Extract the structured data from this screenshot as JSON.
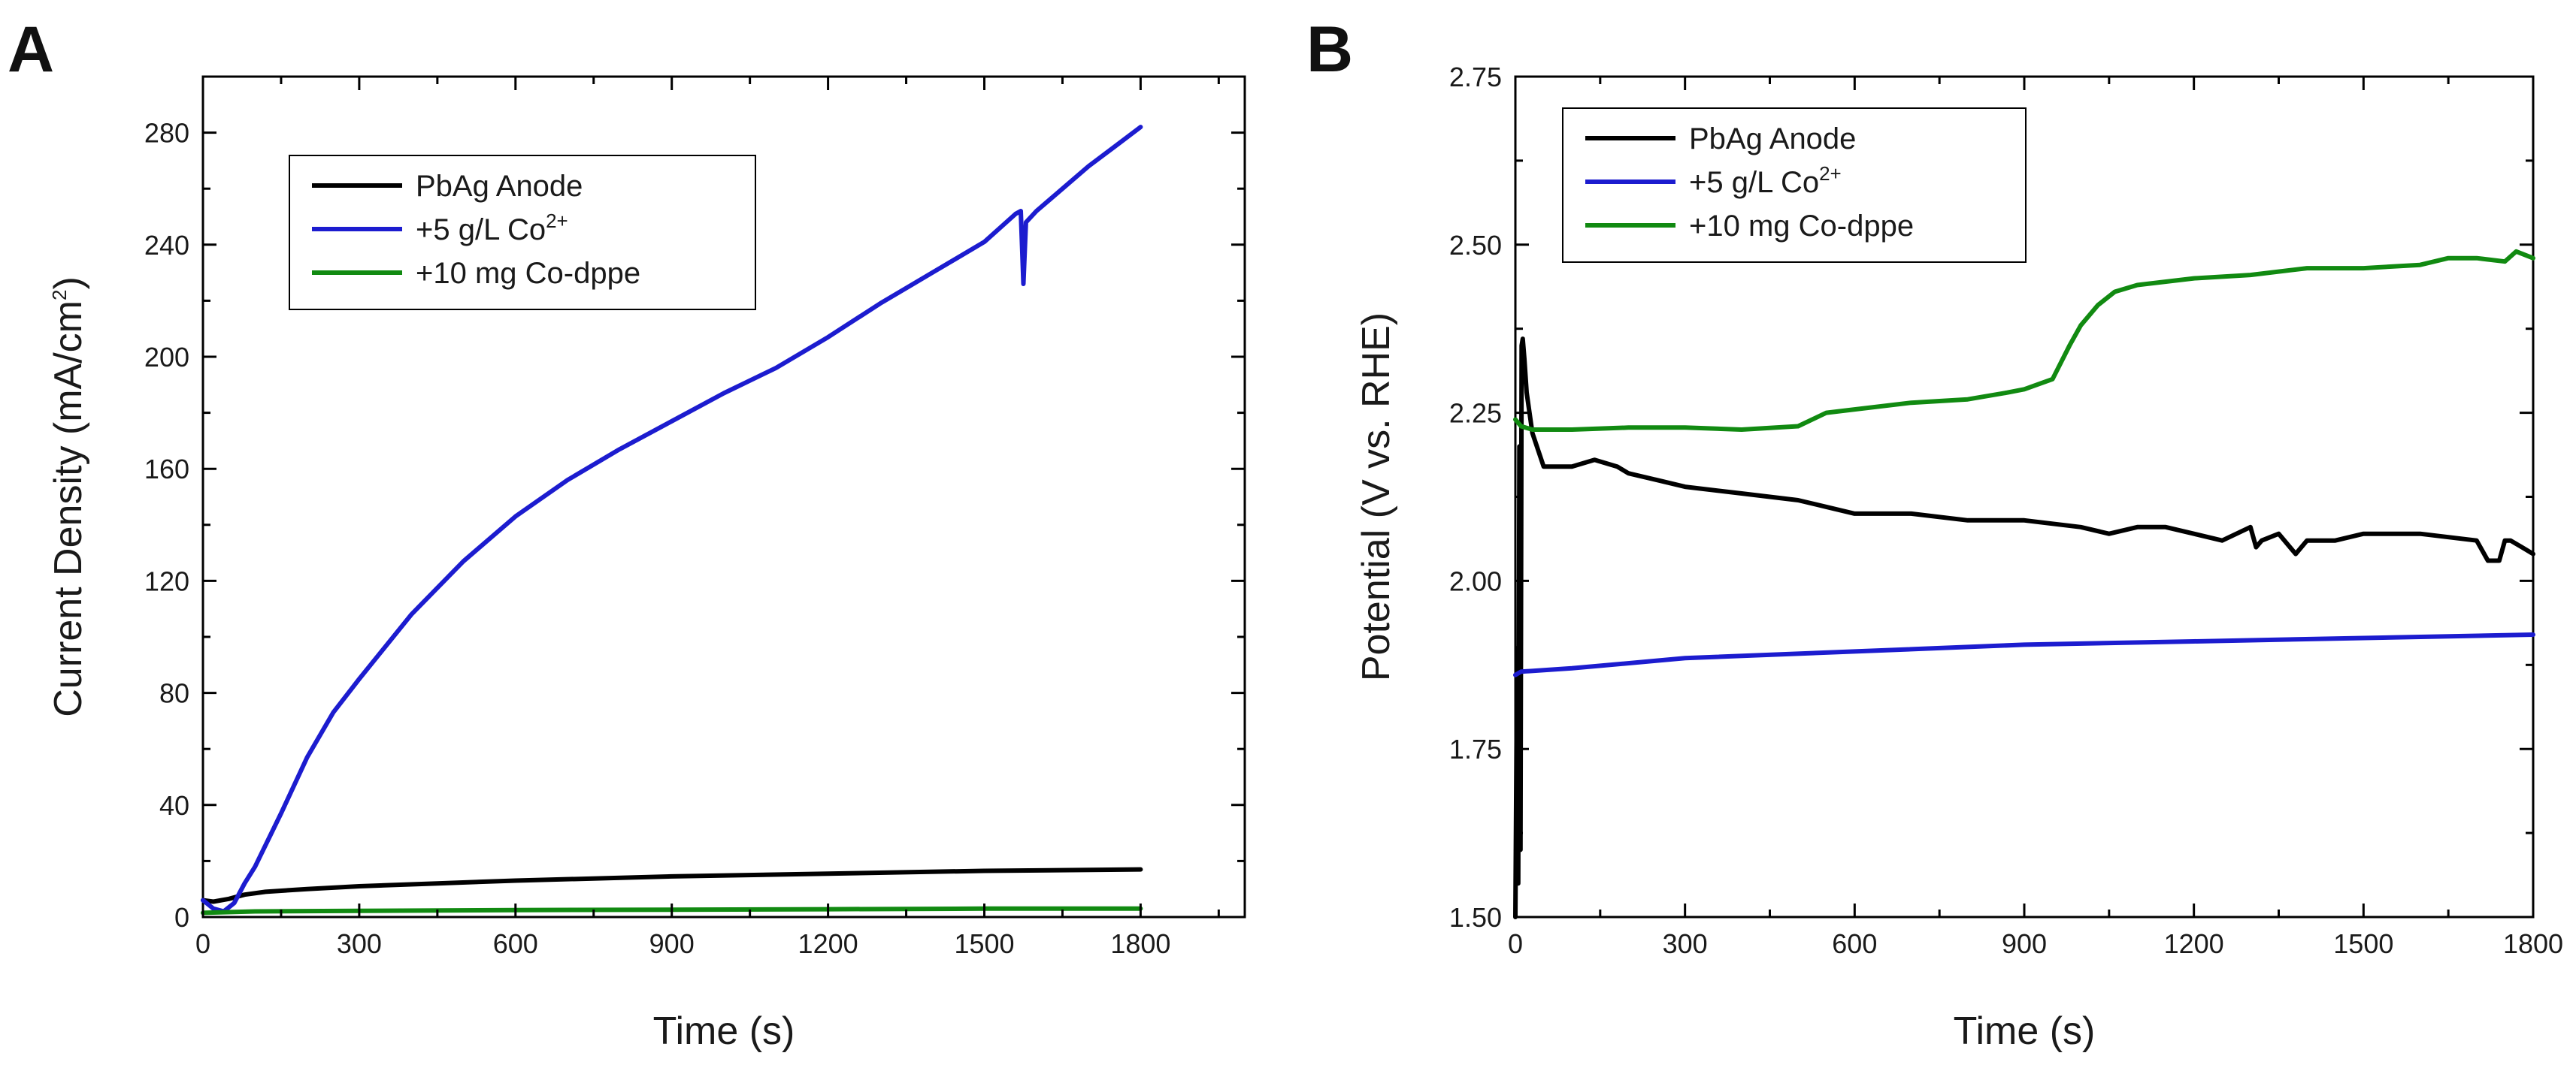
{
  "chart_data": [
    {
      "panel": "A",
      "type": "line",
      "title": "",
      "xlabel": "Time (s)",
      "ylabel": {
        "main": "Current Density (mA/cm",
        "sup": "2",
        "end": ")"
      },
      "xlim": [
        0,
        2000
      ],
      "ylim": [
        0,
        300
      ],
      "xticks": [
        0,
        300,
        600,
        900,
        1200,
        1500,
        1800
      ],
      "yticks": [
        0,
        40,
        80,
        120,
        160,
        200,
        240,
        280
      ],
      "legend": [
        {
          "label": "PbAg Anode",
          "sup": "",
          "color": "#000000"
        },
        {
          "label": "+5 g/L Co",
          "sup": "2+",
          "color": "#1c1ccf"
        },
        {
          "label": "+10 mg Co-dppe",
          "sup": "",
          "color": "#118a11"
        }
      ],
      "series": [
        {
          "name": "PbAg Anode",
          "color": "#000000",
          "x": [
            0,
            20,
            50,
            80,
            120,
            200,
            300,
            450,
            600,
            900,
            1200,
            1500,
            1800
          ],
          "y": [
            6,
            5.5,
            6.5,
            8,
            9,
            10,
            11,
            12,
            13,
            14.5,
            15.5,
            16.5,
            17
          ]
        },
        {
          "name": "+5 g/L Co2+",
          "color": "#1c1ccf",
          "x": [
            0,
            20,
            40,
            60,
            80,
            100,
            150,
            200,
            250,
            300,
            400,
            500,
            600,
            700,
            800,
            900,
            1000,
            1100,
            1200,
            1300,
            1400,
            1500,
            1560,
            1570,
            1575,
            1580,
            1600,
            1650,
            1700,
            1750,
            1800
          ],
          "y": [
            6,
            3,
            2,
            5,
            12,
            18,
            37,
            57,
            73,
            85,
            108,
            127,
            143,
            156,
            167,
            177,
            187,
            196,
            207,
            219,
            230,
            241,
            251,
            252,
            226,
            248,
            252,
            260,
            268,
            275,
            282
          ]
        },
        {
          "name": "+10 mg Co-dppe",
          "color": "#118a11",
          "x": [
            0,
            100,
            300,
            600,
            900,
            1200,
            1500,
            1800
          ],
          "y": [
            1.5,
            2,
            2.2,
            2.5,
            2.6,
            2.8,
            3,
            3
          ]
        }
      ]
    },
    {
      "panel": "B",
      "type": "line",
      "title": "",
      "xlabel": "Time (s)",
      "ylabel": {
        "main": "Potential (V vs. RHE)",
        "sup": "",
        "end": ""
      },
      "xlim": [
        0,
        1800
      ],
      "ylim": [
        1.5,
        2.75
      ],
      "xticks": [
        0,
        300,
        600,
        900,
        1200,
        1500,
        1800
      ],
      "yticks": [
        1.5,
        1.75,
        2.0,
        2.25,
        2.5,
        2.75
      ],
      "ytick_labels": [
        "1.50",
        "1.75",
        "2.00",
        "2.25",
        "2.50",
        "2.75"
      ],
      "legend": [
        {
          "label": "PbAg Anode",
          "sup": "",
          "color": "#000000"
        },
        {
          "label": "+5 g/L Co",
          "sup": "2+",
          "color": "#1c1ccf"
        },
        {
          "label": "+10 mg Co-dppe",
          "sup": "",
          "color": "#118a11"
        }
      ],
      "series": [
        {
          "name": "PbAg Anode",
          "color": "#000000",
          "x": [
            0,
            3,
            5,
            7,
            9,
            11,
            13,
            16,
            20,
            30,
            50,
            80,
            100,
            140,
            180,
            200,
            250,
            300,
            400,
            500,
            550,
            600,
            700,
            800,
            900,
            1000,
            1050,
            1100,
            1150,
            1200,
            1250,
            1300,
            1310,
            1320,
            1350,
            1380,
            1400,
            1450,
            1500,
            1600,
            1700,
            1720,
            1740,
            1750,
            1760,
            1780,
            1800
          ],
          "y": [
            1.5,
            1.9,
            1.55,
            2.2,
            1.6,
            2.35,
            2.36,
            2.33,
            2.28,
            2.22,
            2.17,
            2.17,
            2.17,
            2.18,
            2.17,
            2.16,
            2.15,
            2.14,
            2.13,
            2.12,
            2.11,
            2.1,
            2.1,
            2.09,
            2.09,
            2.08,
            2.07,
            2.08,
            2.08,
            2.07,
            2.06,
            2.08,
            2.05,
            2.06,
            2.07,
            2.04,
            2.06,
            2.06,
            2.07,
            2.07,
            2.06,
            2.03,
            2.03,
            2.06,
            2.06,
            2.05,
            2.04
          ]
        },
        {
          "name": "+5 g/L Co2+",
          "color": "#1c1ccf",
          "x": [
            0,
            10,
            100,
            300,
            600,
            900,
            1200,
            1500,
            1800
          ],
          "y": [
            1.86,
            1.865,
            1.87,
            1.885,
            1.895,
            1.905,
            1.91,
            1.915,
            1.92
          ]
        },
        {
          "name": "+10 mg Co-dppe",
          "color": "#118a11",
          "x": [
            0,
            10,
            30,
            60,
            100,
            200,
            300,
            400,
            500,
            550,
            600,
            700,
            800,
            870,
            900,
            950,
            980,
            1000,
            1030,
            1060,
            1100,
            1200,
            1300,
            1400,
            1500,
            1600,
            1650,
            1700,
            1750,
            1770,
            1800
          ],
          "y": [
            2.24,
            2.23,
            2.225,
            2.225,
            2.225,
            2.228,
            2.228,
            2.225,
            2.23,
            2.25,
            2.255,
            2.265,
            2.27,
            2.28,
            2.285,
            2.3,
            2.35,
            2.38,
            2.41,
            2.43,
            2.44,
            2.45,
            2.455,
            2.465,
            2.465,
            2.47,
            2.48,
            2.48,
            2.475,
            2.49,
            2.48
          ]
        }
      ]
    }
  ]
}
